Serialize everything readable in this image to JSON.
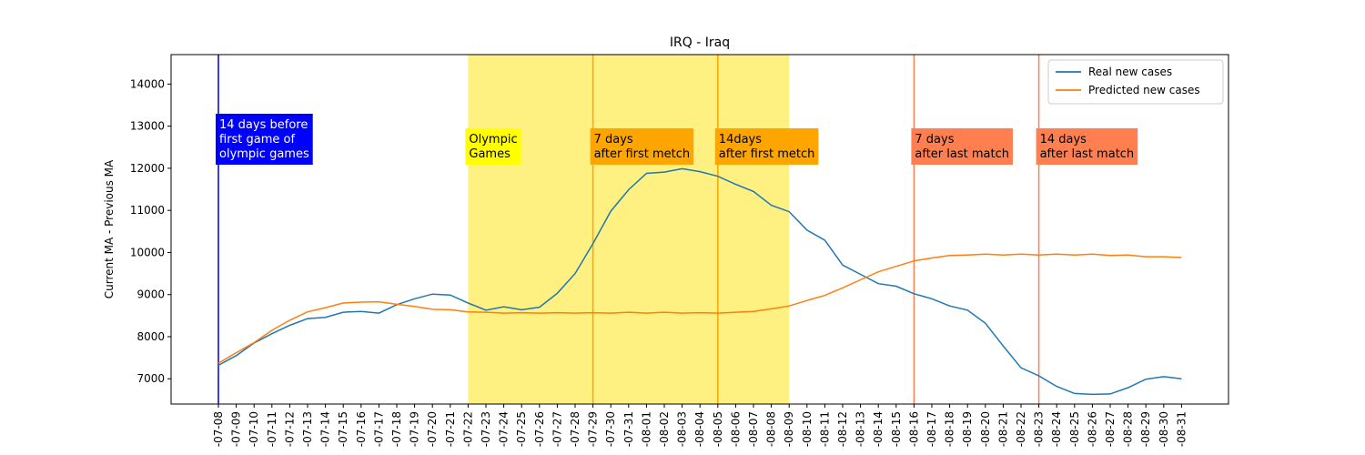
{
  "chart_data": {
    "type": "line",
    "title": "IRQ - Iraq",
    "xlabel": "",
    "ylabel": "Current MA - Previous MA",
    "ylim": [
      6400,
      14700
    ],
    "yticks": [
      7000,
      8000,
      9000,
      10000,
      11000,
      12000,
      13000,
      14000
    ],
    "grid": false,
    "legend_position": "top-right",
    "categories": [
      "2021-07-08",
      "2021-07-09",
      "2021-07-10",
      "2021-07-11",
      "2021-07-12",
      "2021-07-13",
      "2021-07-14",
      "2021-07-15",
      "2021-07-16",
      "2021-07-17",
      "2021-07-18",
      "2021-07-19",
      "2021-07-20",
      "2021-07-21",
      "2021-07-22",
      "2021-07-23",
      "2021-07-24",
      "2021-07-25",
      "2021-07-26",
      "2021-07-27",
      "2021-07-28",
      "2021-07-29",
      "2021-07-30",
      "2021-07-31",
      "2021-08-01",
      "2021-08-02",
      "2021-08-03",
      "2021-08-04",
      "2021-08-05",
      "2021-08-06",
      "2021-08-07",
      "2021-08-08",
      "2021-08-09",
      "2021-08-10",
      "2021-08-11",
      "2021-08-12",
      "2021-08-13",
      "2021-08-14",
      "2021-08-15",
      "2021-08-16",
      "2021-08-17",
      "2021-08-18",
      "2021-08-19",
      "2021-08-20",
      "2021-08-21",
      "2021-08-22",
      "2021-08-23",
      "2021-08-24",
      "2021-08-25",
      "2021-08-26",
      "2021-08-27",
      "2021-08-28",
      "2021-08-29",
      "2021-08-30",
      "2021-08-31"
    ],
    "tick_labels": [
      "-07-08",
      "-07-09",
      "-07-10",
      "-07-11",
      "-07-12",
      "-07-13",
      "-07-14",
      "-07-15",
      "-07-16",
      "-07-17",
      "-07-18",
      "-07-19",
      "-07-20",
      "-07-21",
      "-07-22",
      "-07-23",
      "-07-24",
      "-07-25",
      "-07-26",
      "-07-27",
      "-07-28",
      "-07-29",
      "-07-30",
      "-07-31",
      "-08-01",
      "-08-02",
      "-08-03",
      "-08-04",
      "-08-05",
      "-08-06",
      "-08-07",
      "-08-08",
      "-08-09",
      "-08-10",
      "-08-11",
      "-08-12",
      "-08-13",
      "-08-14",
      "-08-15",
      "-08-16",
      "-08-17",
      "-08-18",
      "-08-19",
      "-08-20",
      "-08-21",
      "-08-22",
      "-08-23",
      "-08-24",
      "-08-25",
      "-08-26",
      "-08-27",
      "-08-28",
      "-08-29",
      "-08-30",
      "-08-31"
    ],
    "series": [
      {
        "name": "Real new cases",
        "color": "#1f77b4",
        "values": [
          7320,
          7550,
          7850,
          8070,
          8270,
          8430,
          8460,
          8580,
          8600,
          8560,
          8760,
          8900,
          9010,
          8990,
          8800,
          8630,
          8710,
          8640,
          8700,
          9030,
          9500,
          10210,
          10980,
          11490,
          11880,
          11910,
          11990,
          11920,
          11810,
          11620,
          11450,
          11120,
          10970,
          10530,
          10290,
          9700,
          9480,
          9260,
          9200,
          9020,
          8900,
          8730,
          8630,
          8320,
          7780,
          7260,
          7070,
          6820,
          6650,
          6630,
          6640,
          6790,
          6990,
          7050,
          7000
        ]
      },
      {
        "name": "Predicted new cases",
        "color": "#ff7f0e",
        "values": [
          7370,
          7620,
          7860,
          8150,
          8390,
          8590,
          8690,
          8800,
          8820,
          8830,
          8770,
          8720,
          8650,
          8640,
          8590,
          8580,
          8560,
          8570,
          8560,
          8570,
          8560,
          8570,
          8560,
          8580,
          8560,
          8580,
          8560,
          8570,
          8560,
          8580,
          8600,
          8660,
          8730,
          8860,
          8980,
          9160,
          9350,
          9540,
          9670,
          9800,
          9870,
          9930,
          9940,
          9960,
          9940,
          9960,
          9940,
          9960,
          9940,
          9960,
          9930,
          9940,
          9900,
          9900,
          9880
        ]
      }
    ],
    "annotations": {
      "shaded_region": {
        "from": "2021-07-22",
        "to": "2021-08-09",
        "color": "#fff082"
      },
      "vlines": [
        {
          "date": "2021-07-08",
          "color": "#0000cc",
          "label": [
            "14 days before",
            "first game of",
            "olympic games"
          ],
          "box_color": "#0000ff",
          "text_color": "#ffffff"
        },
        {
          "date": "2021-07-22",
          "color": null,
          "label": [
            "Olympic",
            "Games"
          ],
          "box_color": "#ffff00",
          "text_color": "#000000"
        },
        {
          "date": "2021-07-29",
          "color": "#ffa500",
          "label": [
            "7 days",
            "after first metch"
          ],
          "box_color": "#ffa500",
          "text_color": "#000000"
        },
        {
          "date": "2021-08-05",
          "color": "#ffa500",
          "label": [
            "14days",
            "after first metch"
          ],
          "box_color": "#ffa500",
          "text_color": "#000000"
        },
        {
          "date": "2021-08-16",
          "color": "#ff7f50",
          "label": [
            "7 days",
            "after last match"
          ],
          "box_color": "#ff7f50",
          "text_color": "#000000"
        },
        {
          "date": "2021-08-23",
          "color": "#ff7f50",
          "label": [
            "14 days",
            "after last match"
          ],
          "box_color": "#ff7f50",
          "text_color": "#000000"
        }
      ]
    }
  }
}
